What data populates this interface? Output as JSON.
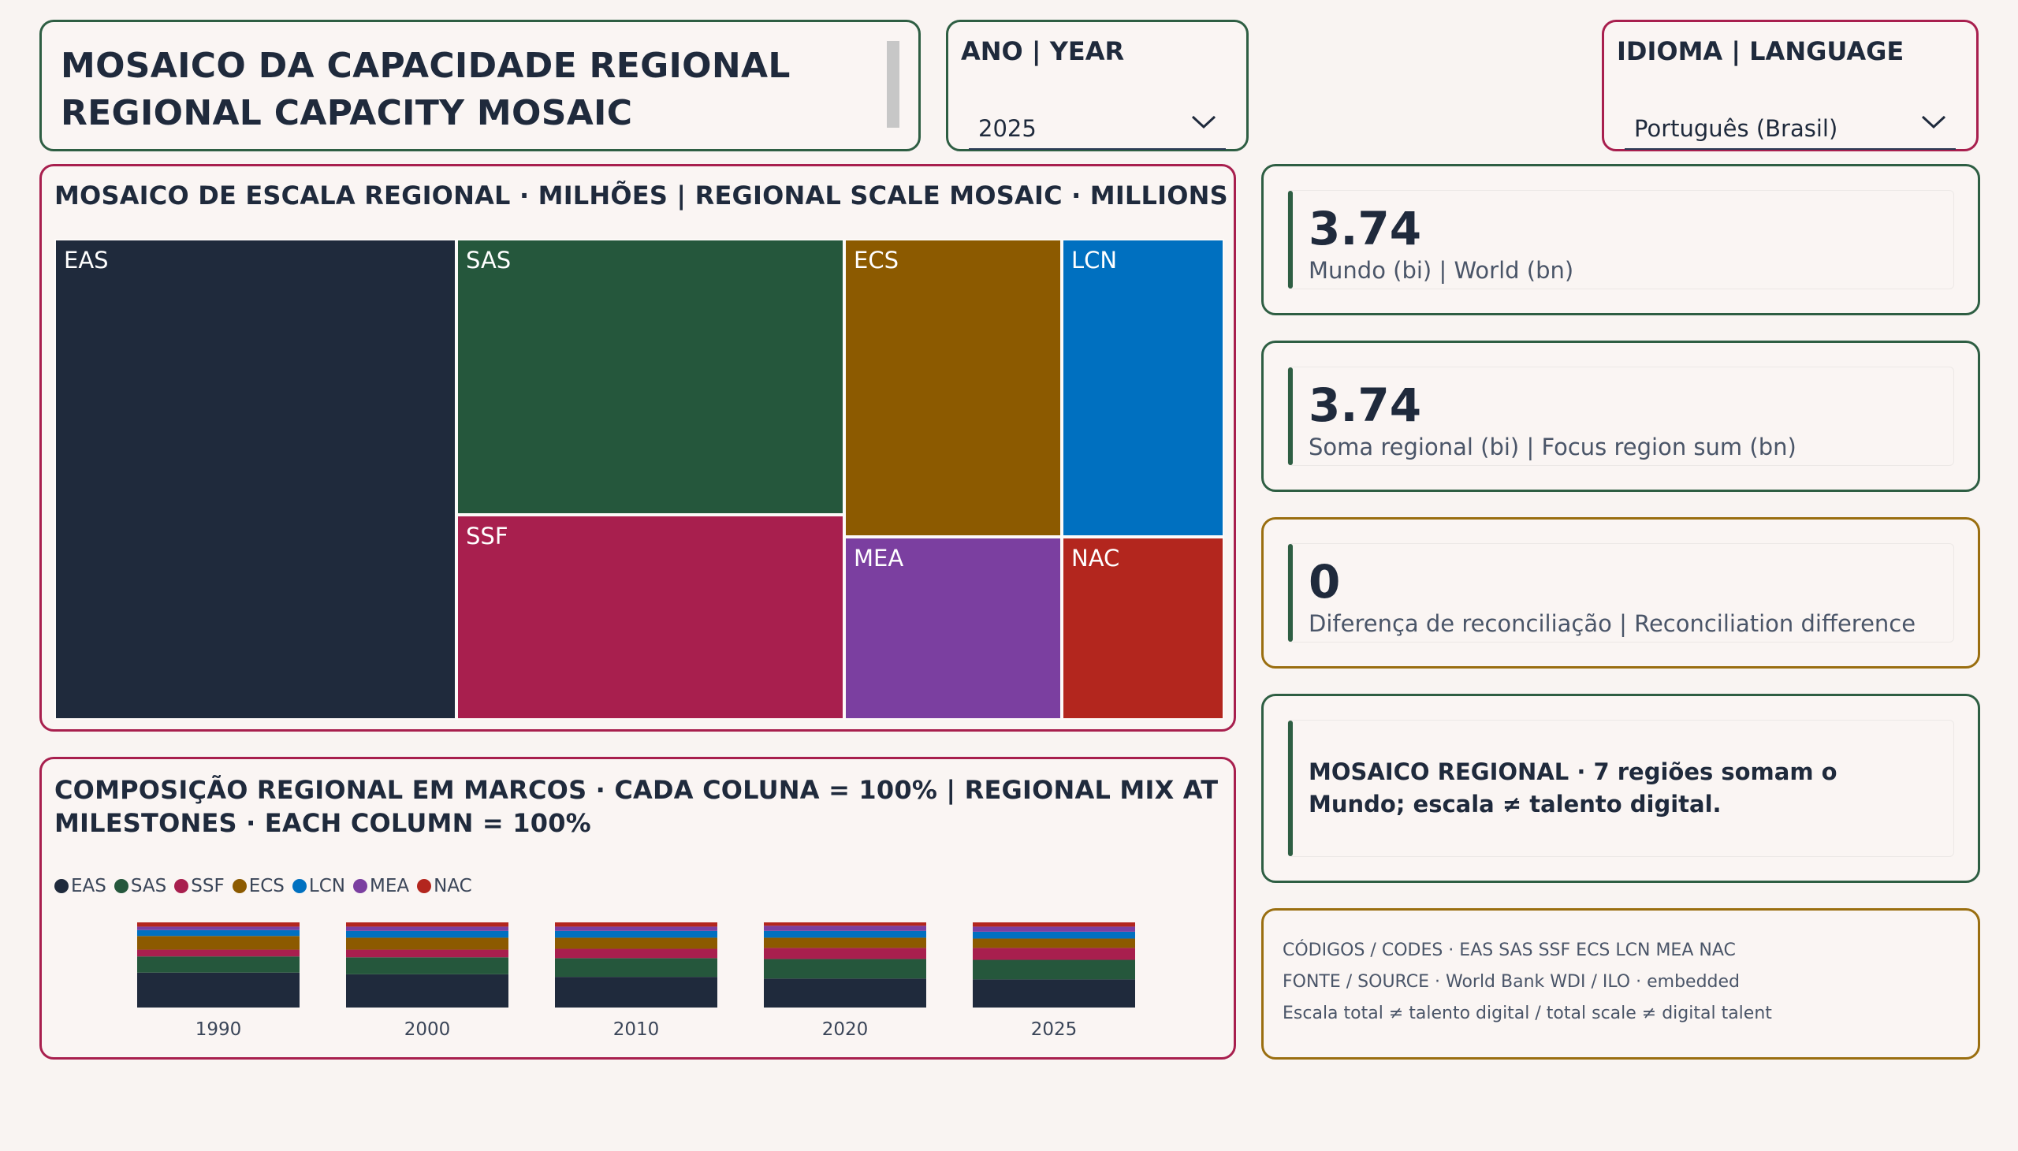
{
  "title": {
    "line1": "MOSAICO DA CAPACIDADE REGIONAL",
    "line2": "REGIONAL CAPACITY MOSAIC"
  },
  "year_slicer": {
    "title": "ANO | YEAR",
    "value": "2025"
  },
  "language_slicer": {
    "title": "IDIOMA | LANGUAGE",
    "value": "Português (Brasil)"
  },
  "treemap": {
    "header": "MOSAICO DE ESCALA REGIONAL · MILHÕES | REGIONAL SCALE MOSAIC · MILLIONS",
    "tiles": [
      {
        "code": "EAS",
        "color": "#1f2a3c"
      },
      {
        "code": "SAS",
        "color": "#25573c"
      },
      {
        "code": "SSF",
        "color": "#a81f4e"
      },
      {
        "code": "ECS",
        "color": "#8c5a00"
      },
      {
        "code": "LCN",
        "color": "#0070c0"
      },
      {
        "code": "MEA",
        "color": "#7b3fa0"
      },
      {
        "code": "NAC",
        "color": "#b3261e"
      }
    ]
  },
  "composition": {
    "header": "COMPOSIÇÃO REGIONAL EM MARCOS · CADA COLUNA = 100% | REGIONAL MIX AT MILESTONES · EACH COLUMN = 100%",
    "legend": [
      {
        "code": "EAS",
        "color": "#1f2a3c"
      },
      {
        "code": "SAS",
        "color": "#25573c"
      },
      {
        "code": "SSF",
        "color": "#a81f4e"
      },
      {
        "code": "ECS",
        "color": "#8c5a00"
      },
      {
        "code": "LCN",
        "color": "#0070c0"
      },
      {
        "code": "MEA",
        "color": "#7b3fa0"
      },
      {
        "code": "NAC",
        "color": "#b3261e"
      }
    ]
  },
  "chart_data": {
    "type": "bar",
    "stacked": true,
    "normalized": true,
    "categories": [
      "1990",
      "2000",
      "2010",
      "2020",
      "2025"
    ],
    "series": [
      {
        "name": "EAS",
        "color": "#1f2a3c",
        "values": [
          41,
          39,
          36,
          34,
          33
        ]
      },
      {
        "name": "SAS",
        "color": "#25573c",
        "values": [
          19,
          20,
          22,
          23,
          23
        ]
      },
      {
        "name": "SSF",
        "color": "#a81f4e",
        "values": [
          8,
          9,
          11,
          13,
          14
        ]
      },
      {
        "name": "ECS",
        "color": "#8c5a00",
        "values": [
          16,
          14,
          13,
          12,
          11
        ]
      },
      {
        "name": "LCN",
        "color": "#0070c0",
        "values": [
          7,
          8,
          8,
          8,
          8
        ]
      },
      {
        "name": "MEA",
        "color": "#7b3fa0",
        "values": [
          4,
          5,
          5,
          6,
          6
        ]
      },
      {
        "name": "NAC",
        "color": "#b3261e",
        "values": [
          5,
          5,
          5,
          4,
          5
        ]
      }
    ],
    "ylim": [
      0,
      100
    ]
  },
  "kpis": [
    {
      "value": "3.74",
      "label": "Mundo (bi) | World (bn)"
    },
    {
      "value": "3.74",
      "label": "Soma regional (bi) | Focus region sum (bn)"
    },
    {
      "value": "0",
      "label": "Diferença de reconciliação | Reconciliation difference"
    }
  ],
  "note": "MOSAICO REGIONAL · 7 regiões somam o Mundo; escala ≠ talento digital.",
  "source": {
    "codes": "CÓDIGOS / CODES · EAS SAS SSF ECS LCN MEA NAC",
    "source": "FONTE / SOURCE · World Bank WDI / ILO · embedded",
    "caveat": "Escala total ≠ talento digital / total scale ≠ digital talent"
  },
  "colors": {
    "background": "#f9f4f2",
    "border_green": "#2e5e43",
    "border_magenta": "#a81f4e",
    "border_gold": "#9a6e10"
  }
}
